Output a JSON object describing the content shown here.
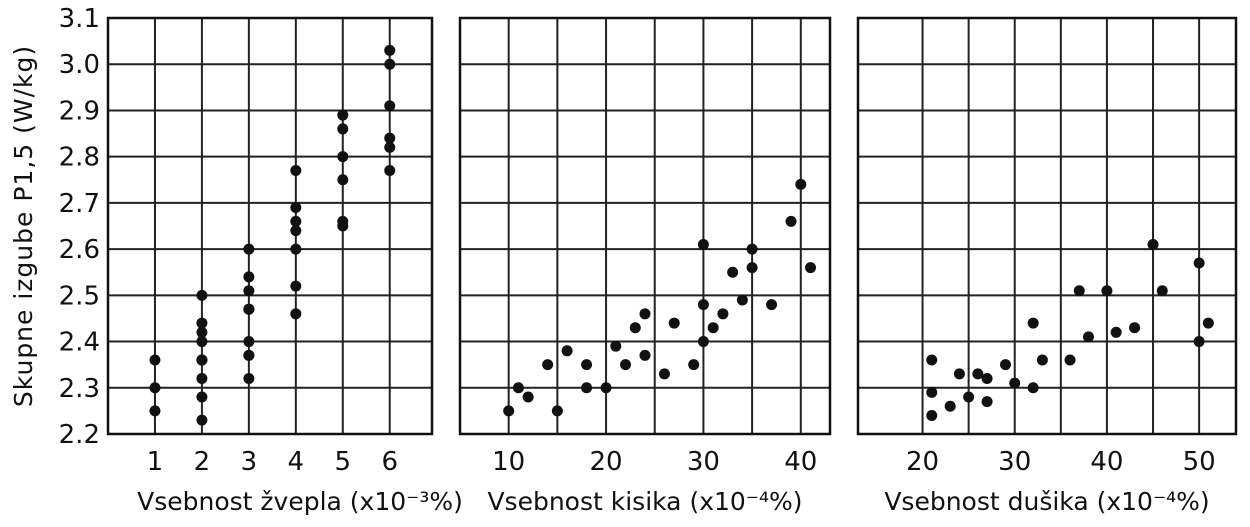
{
  "chart_data": [
    {
      "type": "scatter",
      "xlabel": "Vsebnost žvepla (x10⁻³%)",
      "ylabel": "Skupne izgube  P1,5 (W/kg)",
      "xticks": [
        1,
        2,
        3,
        4,
        5,
        6
      ],
      "ylim": [
        2.2,
        3.1
      ],
      "yticks": [
        "2.2",
        "2.3",
        "2.4",
        "2.5",
        "2.6",
        "2.7",
        "2.8",
        "2.9",
        "3.0",
        "3.1"
      ],
      "grid": true,
      "points": [
        [
          1,
          2.36
        ],
        [
          1,
          2.3
        ],
        [
          1,
          2.25
        ],
        [
          2,
          2.5
        ],
        [
          2,
          2.44
        ],
        [
          2,
          2.42
        ],
        [
          2,
          2.4
        ],
        [
          2,
          2.36
        ],
        [
          2,
          2.36
        ],
        [
          2,
          2.36
        ],
        [
          2,
          2.32
        ],
        [
          2,
          2.28
        ],
        [
          2,
          2.23
        ],
        [
          3,
          2.6
        ],
        [
          3,
          2.54
        ],
        [
          3,
          2.51
        ],
        [
          3,
          2.47
        ],
        [
          3,
          2.47
        ],
        [
          3,
          2.4
        ],
        [
          3,
          2.37
        ],
        [
          3,
          2.37
        ],
        [
          3,
          2.32
        ],
        [
          4,
          2.77
        ],
        [
          4,
          2.69
        ],
        [
          4,
          2.66
        ],
        [
          4,
          2.64
        ],
        [
          4,
          2.6
        ],
        [
          4,
          2.52
        ],
        [
          4,
          2.46
        ],
        [
          5,
          2.89
        ],
        [
          5,
          2.86
        ],
        [
          5,
          2.8
        ],
        [
          5,
          2.75
        ],
        [
          5,
          2.66
        ],
        [
          5,
          2.65
        ],
        [
          6,
          3.03
        ],
        [
          6,
          3.0
        ],
        [
          6,
          2.91
        ],
        [
          6,
          2.84
        ],
        [
          6,
          2.82
        ],
        [
          6,
          2.77
        ]
      ]
    },
    {
      "type": "scatter",
      "xlabel": "Vsebnost kisika (x10⁻⁴%)",
      "xticks": [
        10,
        20,
        30,
        40
      ],
      "ylim": [
        2.2,
        3.1
      ],
      "grid": true,
      "points": [
        [
          10,
          2.25
        ],
        [
          11,
          2.3
        ],
        [
          12,
          2.28
        ],
        [
          14,
          2.35
        ],
        [
          15,
          2.25
        ],
        [
          16,
          2.38
        ],
        [
          18,
          2.35
        ],
        [
          18,
          2.3
        ],
        [
          20,
          2.3
        ],
        [
          21,
          2.39
        ],
        [
          22,
          2.35
        ],
        [
          23,
          2.43
        ],
        [
          24,
          2.46
        ],
        [
          24,
          2.37
        ],
        [
          26,
          2.33
        ],
        [
          27,
          2.44
        ],
        [
          29,
          2.35
        ],
        [
          30,
          2.61
        ],
        [
          30,
          2.48
        ],
        [
          30,
          2.4
        ],
        [
          31,
          2.43
        ],
        [
          32,
          2.46
        ],
        [
          33,
          2.55
        ],
        [
          34,
          2.49
        ],
        [
          35,
          2.6
        ],
        [
          35,
          2.56
        ],
        [
          37,
          2.48
        ],
        [
          39,
          2.66
        ],
        [
          40,
          2.74
        ],
        [
          41,
          2.56
        ]
      ]
    },
    {
      "type": "scatter",
      "xlabel": "Vsebnost dušika (x10⁻⁴%)",
      "xticks": [
        20,
        30,
        40,
        50
      ],
      "ylim": [
        2.2,
        3.1
      ],
      "grid": true,
      "points": [
        [
          21,
          2.36
        ],
        [
          21,
          2.29
        ],
        [
          21,
          2.24
        ],
        [
          23,
          2.26
        ],
        [
          24,
          2.33
        ],
        [
          25,
          2.28
        ],
        [
          26,
          2.33
        ],
        [
          27,
          2.32
        ],
        [
          27,
          2.27
        ],
        [
          29,
          2.35
        ],
        [
          30,
          2.31
        ],
        [
          32,
          2.44
        ],
        [
          32,
          2.3
        ],
        [
          33,
          2.36
        ],
        [
          36,
          2.36
        ],
        [
          37,
          2.51
        ],
        [
          38,
          2.41
        ],
        [
          40,
          2.51
        ],
        [
          41,
          2.42
        ],
        [
          43,
          2.43
        ],
        [
          45,
          2.61
        ],
        [
          46,
          2.51
        ],
        [
          50,
          2.57
        ],
        [
          50,
          2.4
        ],
        [
          51,
          2.44
        ]
      ]
    }
  ]
}
